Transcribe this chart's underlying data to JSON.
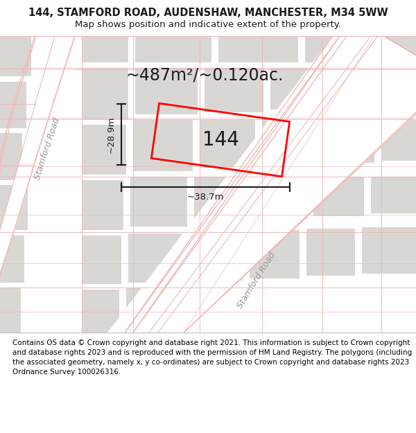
{
  "title": "144, STAMFORD ROAD, AUDENSHAW, MANCHESTER, M34 5WW",
  "subtitle": "Map shows position and indicative extent of the property.",
  "area_label": "~487m²/~0.120ac.",
  "property_number": "144",
  "width_label": "~38.7m",
  "height_label": "~28.9m",
  "footer": "Contains OS data © Crown copyright and database right 2021. This information is subject to Crown copyright and database rights 2023 and is reproduced with the permission of HM Land Registry. The polygons (including the associated geometry, namely x, y co-ordinates) are subject to Crown copyright and database rights 2023 Ordnance Survey 100026316.",
  "bg_color": "#ececea",
  "road_color": "#ffffff",
  "road_line_color": "#f0b8b8",
  "block_color": "#d8d7d4",
  "property_color": "#ff0000",
  "dim_line_color": "#1a1a1a",
  "text_color": "#1a1a1a",
  "road_label_color": "#9a9a9a",
  "title_fontsize": 10.5,
  "subtitle_fontsize": 9.5,
  "footer_fontsize": 7.5,
  "area_fontsize": 17,
  "number_fontsize": 20,
  "dim_fontsize": 9.5,
  "road_label_fontsize": 9
}
